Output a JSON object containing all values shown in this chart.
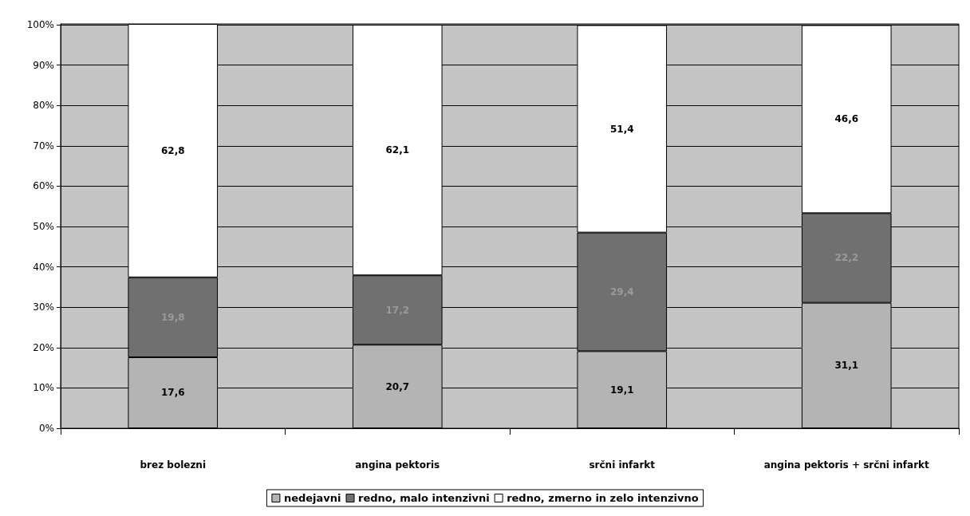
{
  "chart_data": {
    "type": "bar",
    "stacked": true,
    "categories": [
      "brez bolezni",
      "angina pektoris",
      "srčni infarkt",
      "angina pektoris + srčni infarkt"
    ],
    "series": [
      {
        "name": "nedejavni",
        "color": "#b4b4b4",
        "values": [
          17.6,
          20.7,
          19.1,
          31.1
        ],
        "value_labels": [
          "17,6",
          "20,7",
          "19,1",
          "31,1"
        ]
      },
      {
        "name": "redno, malo intenzivni",
        "color": "#707070",
        "values": [
          19.8,
          17.2,
          29.4,
          22.2
        ],
        "value_labels": [
          "19,8",
          "17,2",
          "29,4",
          "22,2"
        ]
      },
      {
        "name": "redno, zmerno in zelo intenzivno",
        "color": "#ffffff",
        "values": [
          62.8,
          62.1,
          51.4,
          46.6
        ],
        "value_labels": [
          "62,8",
          "62,1",
          "51,4",
          "46,6"
        ]
      }
    ],
    "ylim": [
      0,
      100.2
    ],
    "yticks": [
      {
        "value": 0,
        "label": "0%"
      },
      {
        "value": 10,
        "label": "10%"
      },
      {
        "value": 20,
        "label": "20%"
      },
      {
        "value": 30,
        "label": "30%"
      },
      {
        "value": 40,
        "label": "40%"
      },
      {
        "value": 50,
        "label": "50%"
      },
      {
        "value": 60,
        "label": "60%"
      },
      {
        "value": 70,
        "label": "70%"
      },
      {
        "value": 80,
        "label": "80%"
      },
      {
        "value": 90,
        "label": "90%"
      },
      {
        "value": 100,
        "label": "100%"
      }
    ],
    "grid": "y",
    "legend": "bottom"
  }
}
